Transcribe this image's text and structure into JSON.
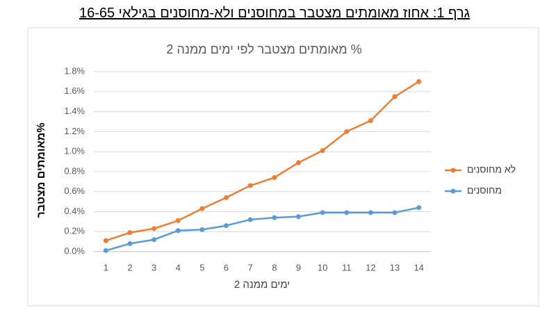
{
  "heading": "גרף 1: אחוז מאומתים מצטבר במחוסנים ולא-מחוסנים בגילאי 16-65",
  "chart_data": {
    "type": "line",
    "title": "% מאומתים מצטבר לפי ימים ממנה 2",
    "x_label": "ימים ממנה 2",
    "y_label": "%מאומתים מצטבר",
    "categories": [
      1,
      2,
      3,
      4,
      5,
      6,
      7,
      8,
      9,
      10,
      11,
      12,
      13,
      14
    ],
    "series": [
      {
        "name": "לא מחוסנים",
        "color": "#ed7d31",
        "values": [
          0.11,
          0.19,
          0.23,
          0.31,
          0.43,
          0.54,
          0.66,
          0.74,
          0.89,
          1.01,
          1.2,
          1.31,
          1.55,
          1.7
        ]
      },
      {
        "name": "מחוסנים",
        "color": "#5b9bd5",
        "values": [
          0.01,
          0.08,
          0.12,
          0.21,
          0.22,
          0.26,
          0.32,
          0.34,
          0.35,
          0.39,
          0.39,
          0.39,
          0.39,
          0.44
        ]
      }
    ],
    "ylim": [
      0,
      1.8
    ],
    "yticks": [
      {
        "value": 0,
        "label": "0.0%"
      },
      {
        "value": 0.2,
        "label": "0.2%"
      },
      {
        "value": 0.4,
        "label": "0.4%"
      },
      {
        "value": 0.6,
        "label": "0.6%"
      },
      {
        "value": 0.8,
        "label": "0.8%"
      },
      {
        "value": 1.0,
        "label": "1.0%"
      },
      {
        "value": 1.2,
        "label": "1.2%"
      },
      {
        "value": 1.4,
        "label": "1.4%"
      },
      {
        "value": 1.6,
        "label": "1.6%"
      },
      {
        "value": 1.8,
        "label": "1.8%"
      }
    ],
    "grid": true,
    "legend": "right"
  }
}
